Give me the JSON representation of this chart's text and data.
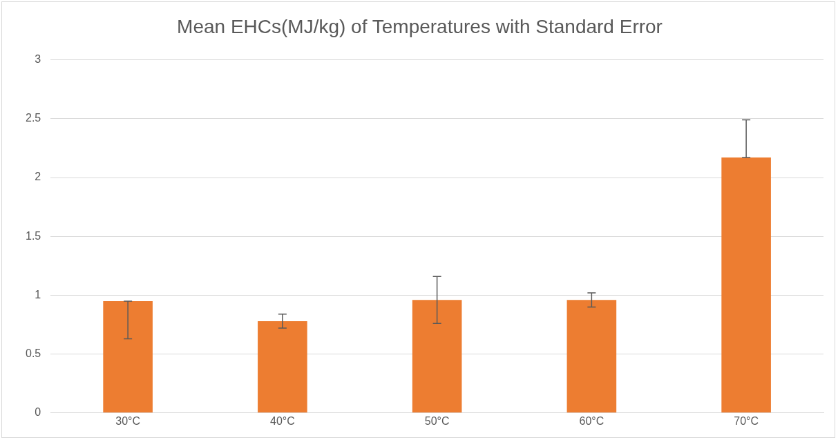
{
  "chart_data": {
    "type": "bar",
    "title": "Mean EHCs(MJ/kg) of Temperatures with Standard Error",
    "categories": [
      "30°C",
      "40°C",
      "50°C",
      "60°C",
      "70°C"
    ],
    "values": [
      0.95,
      0.78,
      0.96,
      0.96,
      2.17
    ],
    "errors": [
      [
        0.63,
        0.95
      ],
      [
        0.72,
        0.84
      ],
      [
        0.76,
        1.16
      ],
      [
        0.9,
        1.02
      ],
      [
        2.17,
        2.49
      ]
    ],
    "color": "#ed7d31",
    "ylim": [
      0,
      3
    ],
    "yticks": [
      0,
      0.5,
      1,
      1.5,
      2,
      2.5,
      3
    ],
    "grid": "y",
    "legend": false
  }
}
